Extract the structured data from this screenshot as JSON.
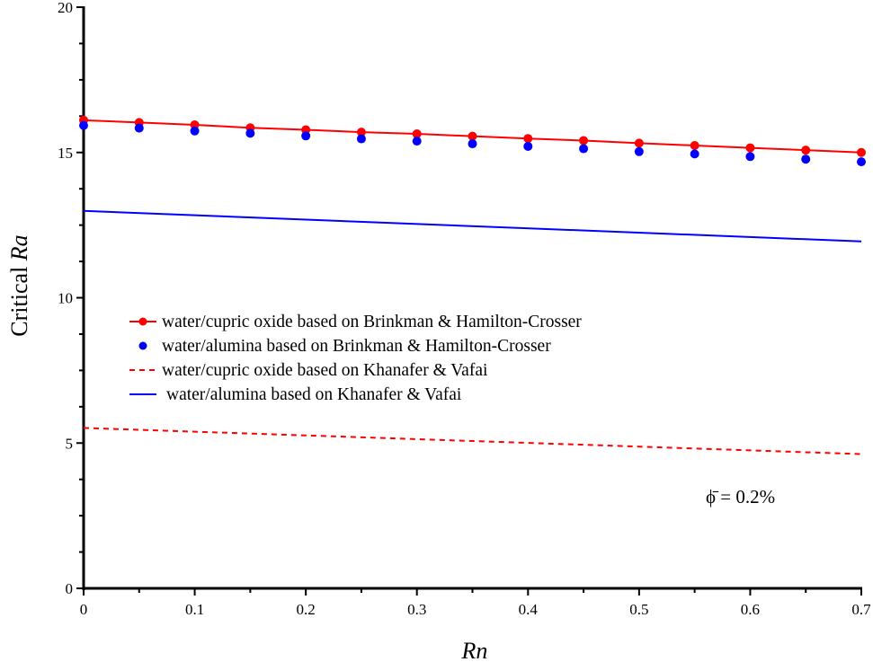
{
  "chart_data": {
    "type": "line",
    "title": "",
    "xlabel": "Rn",
    "ylabel_prefix": "Critical ",
    "ylabel_italic": "Ra",
    "xlim": [
      0,
      0.7
    ],
    "ylim": [
      0,
      20
    ],
    "xticks": [
      0,
      0.1,
      0.2,
      0.3,
      0.4,
      0.5,
      0.6,
      0.7
    ],
    "xtick_labels": [
      "0",
      "0.1",
      "0.2",
      "0.3",
      "0.4",
      "0.5",
      "0.6",
      "0.7"
    ],
    "yticks": [
      0,
      5,
      10,
      15,
      20
    ],
    "ytick_labels": [
      "0",
      "5",
      "10",
      "15",
      "20"
    ],
    "x_minor_step": 0.05,
    "y_minor_step": 1.25,
    "grid": false,
    "legend_placement": "center-left",
    "annotation": "ϕ̄ = 0.2%",
    "series": [
      {
        "name": "water/cupric oxide based on Brinkman & Hamilton-Crosser",
        "style": "line-markers",
        "color": "#ff0000",
        "x": [
          0,
          0.05,
          0.1,
          0.15,
          0.2,
          0.25,
          0.3,
          0.35,
          0.4,
          0.45,
          0.5,
          0.55,
          0.6,
          0.65,
          0.7
        ],
        "y": [
          16.11,
          16.03,
          15.95,
          15.85,
          15.78,
          15.7,
          15.64,
          15.56,
          15.48,
          15.41,
          15.32,
          15.24,
          15.16,
          15.08,
          15.0
        ]
      },
      {
        "name": "water/alumina based on Brinkman & Hamilton-Crosser",
        "style": "markers",
        "color": "#0000ff",
        "x": [
          0,
          0.05,
          0.1,
          0.15,
          0.2,
          0.25,
          0.3,
          0.35,
          0.4,
          0.45,
          0.5,
          0.55,
          0.6,
          0.65,
          0.7
        ],
        "y": [
          15.93,
          15.84,
          15.74,
          15.66,
          15.57,
          15.47,
          15.39,
          15.3,
          15.21,
          15.13,
          15.03,
          14.95,
          14.86,
          14.77,
          14.68
        ]
      },
      {
        "name": "water/cupric oxide based on Khanafer & Vafai",
        "style": "dashed",
        "color": "#ff0000",
        "x": [
          0,
          0.7
        ],
        "y": [
          5.52,
          4.62
        ]
      },
      {
        "name": "water/alumina based on Khanafer & Vafai",
        "style": "solid",
        "color": "#0000ff",
        "x": [
          0,
          0.7
        ],
        "y": [
          12.99,
          11.94
        ]
      }
    ]
  }
}
